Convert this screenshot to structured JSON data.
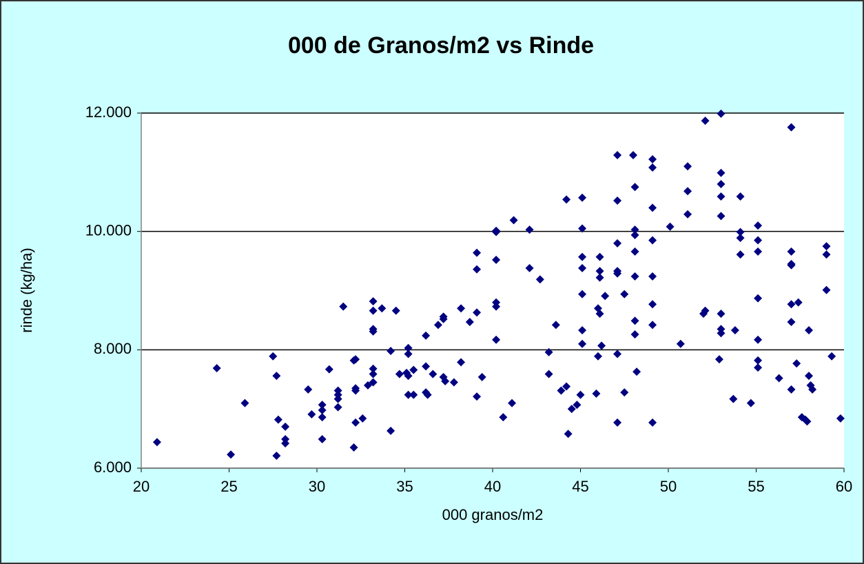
{
  "chart_data": {
    "type": "scatter",
    "title": "000 de Granos/m2 vs Rinde",
    "x_label": "000 granos/m2",
    "y_label": "rinde (kg/ha)",
    "color": "#000080",
    "grid": true,
    "xlim": [
      20,
      60
    ],
    "xticks": [
      20,
      25,
      30,
      35,
      40,
      45,
      50,
      55,
      60
    ],
    "ylim": [
      6000,
      12000
    ],
    "yticks": [
      {
        "value": 6000,
        "label": "6.000"
      },
      {
        "value": 8000,
        "label": "8.000"
      },
      {
        "value": 10000,
        "label": "10.000"
      },
      {
        "value": 12000,
        "label": "12.000"
      }
    ],
    "x": [
      20.9,
      24.3,
      25.1,
      25.9,
      27.5,
      27.7,
      27.8,
      27.7,
      28.2,
      28.2,
      28.2,
      29.5,
      29.7,
      30.3,
      30.3,
      30.3,
      30.3,
      30.7,
      31.2,
      31.2,
      31.2,
      31.2,
      31.5,
      32.1,
      32.2,
      32.2,
      32.2,
      32.1,
      32.2,
      32.6,
      32.9,
      33.2,
      33.2,
      33.2,
      33.2,
      33.2,
      33.2,
      33.2,
      33.7,
      34.2,
      34.2,
      34.5,
      34.7,
      35.1,
      35.2,
      35.2,
      35.2,
      35.2,
      35.5,
      35.5,
      36.2,
      36.2,
      36.2,
      36.3,
      36.6,
      36.9,
      37.2,
      37.2,
      37.2,
      37.3,
      37.8,
      38.2,
      38.2,
      38.7,
      39.1,
      39.1,
      39.1,
      39.1,
      39.4,
      40.2,
      40.2,
      40.2,
      40.2,
      40.2,
      40.2,
      40.6,
      41.1,
      41.2,
      42.1,
      42.1,
      42.7,
      43.2,
      43.2,
      43.6,
      43.9,
      44.2,
      44.2,
      44.3,
      44.5,
      44.8,
      45.0,
      45.1,
      45.1,
      45.1,
      45.1,
      45.1,
      45.1,
      45.1,
      45.9,
      46.0,
      46.0,
      46.1,
      46.1,
      46.1,
      46.1,
      46.2,
      46.4,
      47.1,
      47.1,
      47.1,
      47.1,
      47.1,
      47.1,
      47.1,
      47.5,
      47.5,
      48.0,
      48.1,
      48.1,
      48.1,
      48.1,
      48.1,
      48.1,
      48.1,
      48.2,
      49.1,
      49.1,
      49.1,
      49.1,
      49.1,
      49.1,
      49.1,
      49.1,
      50.1,
      50.7,
      51.1,
      51.1,
      51.1,
      52.1,
      52.0,
      52.1,
      52.9,
      53.0,
      53.0,
      53.0,
      53.0,
      53.0,
      53.0,
      53.0,
      53.0,
      53.8,
      53.7,
      54.1,
      54.1,
      54.1,
      54.1,
      54.7,
      55.1,
      55.1,
      55.1,
      55.1,
      55.1,
      55.1,
      55.1,
      56.3,
      57.0,
      57.0,
      57.0,
      57.0,
      57.0,
      57.0,
      57.0,
      57.3,
      57.4,
      57.6,
      57.8,
      57.9,
      58.0,
      58.0,
      58.1,
      58.2,
      59.0,
      59.0,
      59.0,
      59.3,
      59.8
    ],
    "values": [
      6440,
      7690,
      6230,
      7100,
      7890,
      7560,
      6820,
      6210,
      6700,
      6490,
      6420,
      7330,
      6910,
      7070,
      6980,
      6860,
      6490,
      7670,
      7310,
      7240,
      7170,
      7030,
      8730,
      7820,
      7840,
      7350,
      7310,
      6350,
      6770,
      6840,
      7400,
      8820,
      8660,
      8350,
      8310,
      7680,
      7590,
      7450,
      8700,
      7980,
      6630,
      8660,
      7590,
      7610,
      8030,
      7930,
      7560,
      7240,
      7660,
      7240,
      8240,
      7720,
      7280,
      7240,
      7590,
      8420,
      8560,
      8520,
      7540,
      7470,
      7450,
      8700,
      7790,
      8470,
      7210,
      9640,
      9360,
      8630,
      7540,
      10010,
      9990,
      9520,
      8800,
      8730,
      8170,
      6860,
      7100,
      10190,
      10030,
      9380,
      9190,
      7960,
      7590,
      8420,
      7310,
      7380,
      10540,
      6580,
      7000,
      7070,
      7240,
      10570,
      10050,
      9570,
      9380,
      8940,
      8330,
      8100,
      7260,
      8700,
      7890,
      9570,
      9330,
      9220,
      8610,
      8070,
      8910,
      6770,
      11290,
      10520,
      9800,
      9330,
      9290,
      7930,
      8940,
      7280,
      11290,
      10750,
      10030,
      9940,
      9660,
      9240,
      8490,
      8260,
      7630,
      11220,
      11080,
      10400,
      9850,
      9240,
      8770,
      8420,
      6770,
      10080,
      8100,
      11100,
      10680,
      10290,
      11870,
      8610,
      8660,
      7840,
      11990,
      10990,
      10800,
      10590,
      10260,
      8610,
      8350,
      8280,
      8330,
      7170,
      10590,
      9990,
      9890,
      9610,
      7100,
      10100,
      9850,
      9660,
      8870,
      8170,
      7820,
      7700,
      7520,
      11760,
      9660,
      9450,
      9430,
      8770,
      8470,
      7330,
      7770,
      8800,
      6860,
      6820,
      6790,
      8330,
      7560,
      7400,
      7330,
      9750,
      9610,
      9010,
      7890,
      6840
    ]
  }
}
